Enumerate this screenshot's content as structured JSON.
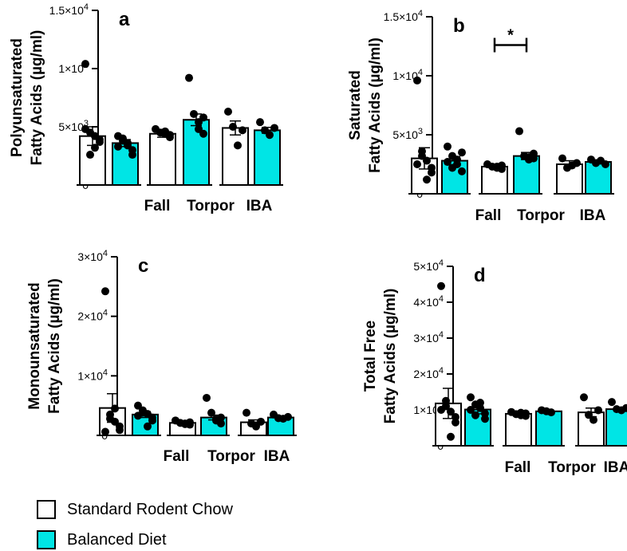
{
  "colors": {
    "standard": "#ffffff",
    "balanced": "#00e5e5",
    "ink": "#000000"
  },
  "legend": {
    "standard_label": "Standard Rodent Chow",
    "balanced_label": "Balanced Diet"
  },
  "chart_data": [
    {
      "panel": "a",
      "type": "bar",
      "ylabel_lines": [
        "Polyunsaturated",
        "Fatty Acids  (µg/ml)"
      ],
      "ylim": [
        0,
        15000
      ],
      "yticks": [
        {
          "v": 0,
          "m": "0",
          "e": ""
        },
        {
          "v": 5000,
          "m": "5×10",
          "e": "3"
        },
        {
          "v": 10000,
          "m": "1×10",
          "e": "4"
        },
        {
          "v": 15000,
          "m": "1.5×10",
          "e": "4"
        }
      ],
      "groups": [
        "Fall",
        "Torpor",
        "IBA"
      ],
      "series": [
        {
          "diet": "standard",
          "means": [
            4200,
            4400,
            4900
          ],
          "sem": [
            800,
            300,
            600
          ],
          "points": [
            [
              10400,
              4500,
              4200,
              3900,
              3700,
              3200,
              2600,
              4800
            ],
            [
              4800,
              4500,
              4400,
              4100,
              4300,
              4600
            ],
            [
              6300,
              5000,
              3400,
              4700
            ]
          ]
        },
        {
          "diet": "balanced",
          "means": [
            3600,
            5600,
            4700
          ],
          "sem": [
            300,
            500,
            250
          ],
          "points": [
            [
              4200,
              3800,
              3400,
              3000,
              2600,
              3600,
              4000,
              3300
            ],
            [
              9200,
              6100,
              4800,
              4400,
              5800,
              5400
            ],
            [
              5400,
              4700,
              4300,
              4900
            ]
          ]
        }
      ],
      "annotations": []
    },
    {
      "panel": "b",
      "type": "bar",
      "ylabel_lines": [
        "Saturated",
        "Fatty  Acids (µg/ml)"
      ],
      "ylim": [
        0,
        15000
      ],
      "yticks": [
        {
          "v": 0,
          "m": "0",
          "e": ""
        },
        {
          "v": 5000,
          "m": "5×10",
          "e": "3"
        },
        {
          "v": 10000,
          "m": "1×10",
          "e": "4"
        },
        {
          "v": 15000,
          "m": "1.5×10",
          "e": "4"
        }
      ],
      "groups": [
        "Fall",
        "Torpor",
        "IBA"
      ],
      "series": [
        {
          "diet": "standard",
          "means": [
            3000,
            2300,
            2500
          ],
          "sem": [
            900,
            100,
            300
          ],
          "points": [
            [
              9600,
              3200,
              2800,
              2200,
              1800,
              1200,
              3600,
              2500
            ],
            [
              2500,
              2300,
              2200,
              2100,
              2400,
              2300
            ],
            [
              3000,
              2200,
              2400,
              2600
            ]
          ]
        },
        {
          "diet": "balanced",
          "means": [
            2800,
            3200,
            2700
          ],
          "sem": [
            350,
            300,
            150
          ],
          "points": [
            [
              4000,
              3200,
              2500,
              1900,
              3500,
              2900,
              2200,
              2700
            ],
            [
              5300,
              3200,
              2900,
              3400,
              3000,
              3100
            ],
            [
              2900,
              2600,
              2800,
              2500
            ]
          ]
        }
      ],
      "annotations": [
        {
          "text": "*",
          "group": 1
        }
      ]
    },
    {
      "panel": "c",
      "type": "bar",
      "ylabel_lines": [
        "Monounsaturated",
        "Fatty  Acids (µg/ml)"
      ],
      "ylim": [
        0,
        30000
      ],
      "yticks": [
        {
          "v": 0,
          "m": "0",
          "e": ""
        },
        {
          "v": 10000,
          "m": "1×10",
          "e": "4"
        },
        {
          "v": 20000,
          "m": "2×10",
          "e": "4"
        },
        {
          "v": 30000,
          "m": "3×10",
          "e": "4"
        }
      ],
      "groups": [
        "Fall",
        "Torpor",
        "IBA"
      ],
      "series": [
        {
          "diet": "standard",
          "means": [
            4600,
            2100,
            2200
          ],
          "sem": [
            2400,
            200,
            400
          ],
          "points": [
            [
              24200,
              3500,
              2300,
              1500,
              900,
              4500,
              2800,
              600
            ],
            [
              2500,
              2100,
              1900,
              1800,
              2200,
              2000
            ],
            [
              3800,
              2000,
              1500,
              2300
            ]
          ]
        },
        {
          "diet": "balanced",
          "means": [
            3500,
            3000,
            3000
          ],
          "sem": [
            500,
            400,
            200
          ],
          "points": [
            [
              5000,
              4200,
              3600,
              3000,
              2500,
              1500,
              3800,
              3300
            ],
            [
              6300,
              3800,
              2500,
              2000,
              3000,
              2700
            ],
            [
              3500,
              2900,
              2800,
              3100
            ]
          ]
        }
      ],
      "annotations": []
    },
    {
      "panel": "d",
      "type": "bar",
      "ylabel_lines": [
        "Total  Free",
        "Fatty Acids (µg/ml)"
      ],
      "ylim": [
        0,
        50000
      ],
      "yticks": [
        {
          "v": 0,
          "m": "0",
          "e": ""
        },
        {
          "v": 10000,
          "m": "1×10",
          "e": "4"
        },
        {
          "v": 20000,
          "m": "2×10",
          "e": "4"
        },
        {
          "v": 30000,
          "m": "3×10",
          "e": "4"
        },
        {
          "v": 40000,
          "m": "4×10",
          "e": "4"
        },
        {
          "v": 50000,
          "m": "5×10",
          "e": "4"
        }
      ],
      "groups": [
        "Fall",
        "Torpor",
        "IBA"
      ],
      "series": [
        {
          "diet": "standard",
          "means": [
            11800,
            8900,
            9300
          ],
          "sem": [
            4200,
            400,
            1200
          ],
          "points": [
            [
              44500,
              11000,
              9500,
              8000,
              6500,
              2500,
              12500,
              10000
            ],
            [
              9400,
              8800,
              8500,
              8300,
              9000,
              9200
            ],
            [
              13500,
              8600,
              7200,
              9900
            ]
          ]
        },
        {
          "diet": "balanced",
          "means": [
            10100,
            9600,
            10200
          ],
          "sem": [
            1200,
            200,
            400
          ],
          "points": [
            [
              13500,
              11500,
              10500,
              9000,
              7500,
              12000,
              8500,
              10000
            ],
            [
              9900,
              9600,
              9300
            ],
            [
              12200,
              10200,
              9900,
              10500
            ]
          ]
        }
      ],
      "annotations": []
    }
  ]
}
